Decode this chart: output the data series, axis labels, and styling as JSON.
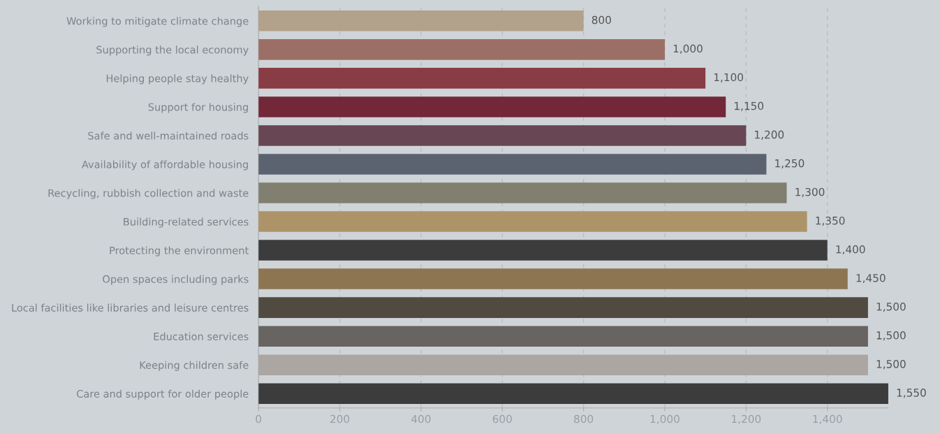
{
  "chart_data": {
    "type": "bar",
    "orientation": "horizontal",
    "categories": [
      "Working to mitigate climate change",
      "Supporting the local economy",
      "Helping people stay healthy",
      "Support for housing",
      "Safe and well-maintained roads",
      "Availability of affordable housing",
      "Recycling, rubbish collection and waste",
      "Building-related services",
      "Protecting the environment",
      "Open spaces including parks",
      "Local facilities like libraries and leisure centres",
      "Education services",
      "Keeping children safe",
      "Care and support for older people"
    ],
    "values": [
      800,
      1000,
      1100,
      1150,
      1200,
      1250,
      1300,
      1350,
      1400,
      1450,
      1500,
      1500,
      1500,
      1550
    ],
    "colors": [
      "#b2a18b",
      "#9c6f66",
      "#883c44",
      "#722838",
      "#684654",
      "#5c6370",
      "#807f70",
      "#ac9468",
      "#3c3c3c",
      "#8c7550",
      "#514a41",
      "#676461",
      "#aba6a1",
      "#3c3c3c"
    ],
    "value_labels": [
      "800",
      "1,000",
      "1,100",
      "1,150",
      "1,200",
      "1,250",
      "1,300",
      "1,350",
      "1,400",
      "1,450",
      "1,500",
      "1,500",
      "1,500",
      "1,550"
    ],
    "xlim": [
      0,
      1550
    ],
    "xticks": [
      0,
      200,
      400,
      600,
      800,
      {
        "value": 1000,
        "label": "1,000"
      },
      {
        "value": 1200,
        "label": "1,200"
      },
      {
        "value": 1400,
        "label": "1,400"
      }
    ],
    "grid": "x",
    "legend": false
  }
}
